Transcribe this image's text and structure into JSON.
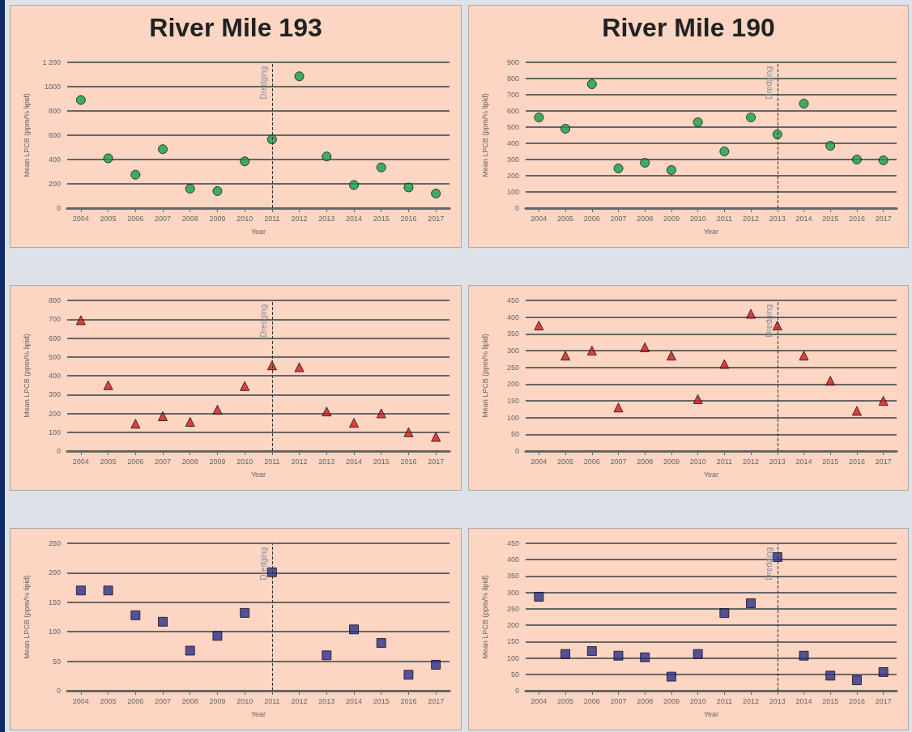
{
  "chart_data": [
    {
      "type": "scatter",
      "title": "River Mile 193",
      "xlabel": "Year",
      "ylabel": "Mean LPCB (ppm/% lipid)",
      "categories": [
        "2004",
        "2005",
        "2006",
        "2007",
        "2008",
        "2009",
        "2010",
        "2011",
        "2012",
        "2013",
        "2014",
        "2015",
        "2016",
        "2017"
      ],
      "series": [
        {
          "color": "#12a04a",
          "values": [
            890,
            410,
            275,
            485,
            160,
            140,
            385,
            565,
            1085,
            425,
            190,
            335,
            170,
            120
          ]
        }
      ],
      "ylim": [
        0,
        1200
      ],
      "yticks": [
        0,
        200,
        400,
        600,
        800,
        1000,
        {
          "value": 1200,
          "label": "1 200"
        }
      ],
      "grid": "y",
      "marker": "circle",
      "ref_lines": [
        {
          "axis": "x",
          "value": "2011",
          "label": "Dredging",
          "line_style": "dashed"
        }
      ]
    },
    {
      "type": "scatter",
      "title": "River Mile 190",
      "xlabel": "Year",
      "ylabel": "Mean LPCB (ppm/% lipid)",
      "categories": [
        "2004",
        "2005",
        "2006",
        "2007",
        "2008",
        "2009",
        "2010",
        "2011",
        "2012",
        "2013",
        "2014",
        "2015",
        "2016",
        "2017"
      ],
      "series": [
        {
          "color": "#12a04a",
          "values": [
            560,
            490,
            765,
            245,
            280,
            235,
            530,
            350,
            560,
            455,
            645,
            385,
            300,
            295
          ]
        }
      ],
      "ylim": [
        0,
        900
      ],
      "yticks": [
        0,
        100,
        200,
        300,
        400,
        500,
        600,
        700,
        800,
        900
      ],
      "grid": "y",
      "marker": "circle",
      "ref_lines": [
        {
          "axis": "x",
          "value": "2013",
          "label": "Dredging",
          "line_style": "dashed"
        }
      ]
    },
    {
      "type": "scatter",
      "xlabel": "Year",
      "ylabel": "Mean LPCB (ppm/% lipid)",
      "categories": [
        "2004",
        "2005",
        "2006",
        "2007",
        "2008",
        "2009",
        "2010",
        "2011",
        "2012",
        "2013",
        "2014",
        "2015",
        "2016",
        "2017"
      ],
      "series": [
        {
          "color": "#d7191c",
          "values": [
            695,
            350,
            145,
            185,
            155,
            220,
            345,
            455,
            445,
            210,
            150,
            200,
            100,
            75
          ]
        }
      ],
      "ylim": [
        0,
        800
      ],
      "yticks": [
        0,
        100,
        200,
        300,
        400,
        500,
        600,
        700,
        800
      ],
      "grid": "y",
      "marker": "triangle",
      "ref_lines": [
        {
          "axis": "x",
          "value": "2011",
          "label": "Dredging",
          "line_style": "dashed"
        }
      ]
    },
    {
      "type": "scatter",
      "xlabel": "Year",
      "ylabel": "Mean LPCB (ppm/% lipid)",
      "categories": [
        "2004",
        "2005",
        "2006",
        "2007",
        "2008",
        "2009",
        "2010",
        "2011",
        "2012",
        "2013",
        "2014",
        "2015",
        "2016",
        "2017"
      ],
      "series": [
        {
          "color": "#d7191c",
          "values": [
            375,
            285,
            300,
            130,
            310,
            285,
            155,
            260,
            410,
            375,
            285,
            210,
            120,
            150
          ]
        }
      ],
      "ylim": [
        0,
        450
      ],
      "yticks": [
        0,
        50,
        100,
        150,
        200,
        250,
        300,
        350,
        400,
        450
      ],
      "grid": "y",
      "marker": "triangle",
      "ref_lines": [
        {
          "axis": "x",
          "value": "2013",
          "label": "Dredging",
          "line_style": "dashed"
        }
      ]
    },
    {
      "type": "scatter",
      "xlabel": "Year",
      "ylabel": "Mean LPCB (ppm/% lipid)",
      "categories": [
        "2004",
        "2005",
        "2006",
        "2007",
        "2008",
        "2009",
        "2010",
        "2011",
        "2012",
        "2013",
        "2014",
        "2015",
        "2016",
        "2017"
      ],
      "series": [
        {
          "color": "#2b2f8f",
          "values": [
            170,
            170,
            128,
            117,
            68,
            93,
            132,
            201,
            null,
            60,
            104,
            81,
            27,
            44
          ]
        }
      ],
      "ylim": [
        0,
        250
      ],
      "yticks": [
        0,
        50,
        100,
        150,
        200,
        250
      ],
      "grid": "y",
      "marker": "square",
      "ref_lines": [
        {
          "axis": "x",
          "value": "2011",
          "label": "Dredging",
          "line_style": "dashed"
        }
      ]
    },
    {
      "type": "scatter",
      "xlabel": "Year",
      "ylabel": "Mean LPCB (ppm/% lipid)",
      "categories": [
        "2004",
        "2005",
        "2006",
        "2007",
        "2008",
        "2009",
        "2010",
        "2011",
        "2012",
        "2013",
        "2014",
        "2015",
        "2016",
        "2017"
      ],
      "series": [
        {
          "color": "#2b2f8f",
          "values": [
            287,
            112,
            121,
            107,
            102,
            43,
            112,
            237,
            267,
            408,
            107,
            46,
            32,
            57
          ]
        }
      ],
      "ylim": [
        0,
        450
      ],
      "yticks": [
        0,
        50,
        100,
        150,
        200,
        250,
        300,
        350,
        400,
        450
      ],
      "grid": "y",
      "marker": "square",
      "ref_lines": [
        {
          "axis": "x",
          "value": "2013",
          "label": "Dredging",
          "line_style": "dashed"
        }
      ]
    }
  ]
}
